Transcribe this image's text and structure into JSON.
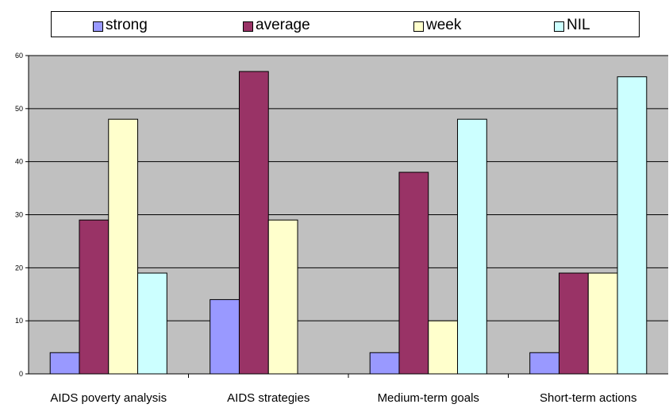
{
  "chart_data": {
    "type": "bar",
    "categories": [
      "AIDS poverty analysis",
      "AIDS strategies",
      "Medium-term goals",
      "Short-term actions"
    ],
    "series": [
      {
        "name": "strong",
        "values": [
          4,
          14,
          4,
          4
        ],
        "color": "#9999FF"
      },
      {
        "name": "average",
        "values": [
          29,
          57,
          38,
          19
        ],
        "color": "#993366"
      },
      {
        "name": "week",
        "values": [
          48,
          29,
          10,
          19
        ],
        "color": "#FFFFCC"
      },
      {
        "name": "NIL",
        "values": [
          19,
          0,
          48,
          56
        ],
        "color": "#CCFFFF"
      }
    ],
    "title": "",
    "xlabel": "",
    "ylabel": "",
    "ylim": [
      0,
      60
    ],
    "yticks": [
      0,
      10,
      20,
      30,
      40,
      50,
      60
    ],
    "grid": true,
    "plot_background": "#C0C0C0",
    "legend_position": "top"
  }
}
